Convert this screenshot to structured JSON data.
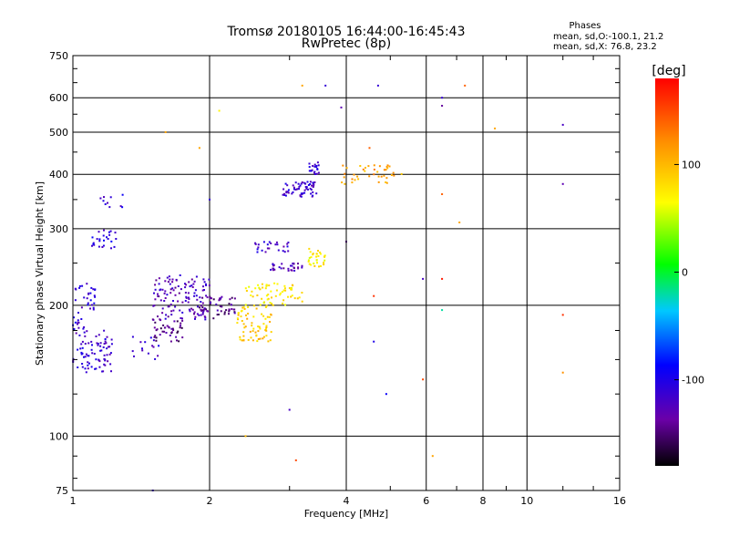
{
  "chart_data": {
    "type": "scatter",
    "title": "Tromsø 20180105 16:44:00-16:45:43",
    "subtitle": "RwPretec (8p)",
    "xlabel": "Frequency [MHz]",
    "ylabel": "Stationary phase Virtual Height [km]",
    "x_scale": "log",
    "y_scale": "log",
    "xlim": [
      1,
      16
    ],
    "ylim": [
      75,
      750
    ],
    "x_ticks": [
      1,
      2,
      4,
      6,
      8,
      10,
      16
    ],
    "x_tick_labels": [
      "1",
      "2",
      "4",
      "6",
      "8",
      "10",
      "16"
    ],
    "y_ticks": [
      75,
      100,
      200,
      300,
      400,
      500,
      600,
      750
    ],
    "y_tick_labels": [
      "75",
      "100",
      "200",
      "300",
      "400",
      "500",
      "600",
      "750"
    ],
    "x_grid": [
      2,
      4,
      6,
      8,
      10
    ],
    "y_grid": [
      100,
      200,
      300,
      400,
      500,
      600
    ],
    "stats_title": "Phases",
    "stats_lines": [
      "mean, sd,O:-100.1, 21.2",
      "mean, sd,X: 76.8, 23.2"
    ],
    "colorbar": {
      "label": "[deg]",
      "range": [
        -180,
        180
      ],
      "ticks": [
        100,
        0,
        -100
      ],
      "tick_labels": [
        "100",
        "0",
        "-100"
      ]
    },
    "clusters": [
      {
        "x": [
          1.0,
          1.22
        ],
        "y": [
          140,
          175
        ],
        "phase": -115,
        "n": 80
      },
      {
        "x": [
          1.0,
          1.12
        ],
        "y": [
          175,
          230
        ],
        "phase": -110,
        "n": 40
      },
      {
        "x": [
          1.1,
          1.25
        ],
        "y": [
          270,
          300
        ],
        "phase": -105,
        "n": 25
      },
      {
        "x": [
          1.15,
          1.3
        ],
        "y": [
          330,
          360
        ],
        "phase": -110,
        "n": 10
      },
      {
        "x": [
          1.35,
          1.55
        ],
        "y": [
          150,
          170
        ],
        "phase": -110,
        "n": 15
      },
      {
        "x": [
          1.5,
          2.0
        ],
        "y": [
          185,
          235
        ],
        "phase": -125,
        "n": 120
      },
      {
        "x": [
          1.5,
          1.75
        ],
        "y": [
          165,
          185
        ],
        "phase": -145,
        "n": 40
      },
      {
        "x": [
          1.9,
          2.3
        ],
        "y": [
          185,
          210
        ],
        "phase": -140,
        "n": 50
      },
      {
        "x": [
          2.3,
          2.75
        ],
        "y": [
          165,
          200
        ],
        "phase": 90,
        "n": 70
      },
      {
        "x": [
          2.4,
          3.2
        ],
        "y": [
          200,
          225
        ],
        "phase": 75,
        "n": 60
      },
      {
        "x": [
          2.7,
          3.2
        ],
        "y": [
          240,
          250
        ],
        "phase": -125,
        "n": 30
      },
      {
        "x": [
          2.5,
          3.0
        ],
        "y": [
          265,
          280
        ],
        "phase": -115,
        "n": 25
      },
      {
        "x": [
          3.3,
          3.6
        ],
        "y": [
          245,
          270
        ],
        "phase": 75,
        "n": 30
      },
      {
        "x": [
          2.9,
          3.45
        ],
        "y": [
          355,
          385
        ],
        "phase": -115,
        "n": 60
      },
      {
        "x": [
          3.3,
          3.5
        ],
        "y": [
          400,
          430
        ],
        "phase": -110,
        "n": 20
      },
      {
        "x": [
          3.9,
          5.3
        ],
        "y": [
          380,
          420
        ],
        "phase": 110,
        "n": 40
      }
    ],
    "scatter_points": [
      {
        "x": 1.5,
        "y": 75,
        "phase": -110
      },
      {
        "x": 3.2,
        "y": 640,
        "phase": 110
      },
      {
        "x": 3.6,
        "y": 640,
        "phase": -110
      },
      {
        "x": 4.7,
        "y": 640,
        "phase": -110
      },
      {
        "x": 6.5,
        "y": 600,
        "phase": -110
      },
      {
        "x": 7.3,
        "y": 640,
        "phase": 140
      },
      {
        "x": 6.5,
        "y": 575,
        "phase": -140
      },
      {
        "x": 12.0,
        "y": 520,
        "phase": -120
      },
      {
        "x": 12.0,
        "y": 380,
        "phase": -130
      },
      {
        "x": 12.0,
        "y": 190,
        "phase": 160
      },
      {
        "x": 12.0,
        "y": 140,
        "phase": 120
      },
      {
        "x": 6.5,
        "y": 360,
        "phase": 140
      },
      {
        "x": 6.5,
        "y": 230,
        "phase": 170
      },
      {
        "x": 6.5,
        "y": 195,
        "phase": -20
      },
      {
        "x": 5.9,
        "y": 230,
        "phase": -120
      },
      {
        "x": 5.9,
        "y": 135,
        "phase": 150
      },
      {
        "x": 6.2,
        "y": 90,
        "phase": 110
      },
      {
        "x": 4.0,
        "y": 280,
        "phase": -160
      },
      {
        "x": 3.9,
        "y": 570,
        "phase": -130
      },
      {
        "x": 3.0,
        "y": 115,
        "phase": -120
      },
      {
        "x": 2.4,
        "y": 100,
        "phase": 100
      },
      {
        "x": 3.1,
        "y": 88,
        "phase": 150
      },
      {
        "x": 2.1,
        "y": 560,
        "phase": 70
      },
      {
        "x": 4.5,
        "y": 460,
        "phase": 140
      },
      {
        "x": 4.9,
        "y": 125,
        "phase": -90
      },
      {
        "x": 7.1,
        "y": 310,
        "phase": 110
      },
      {
        "x": 8.5,
        "y": 510,
        "phase": 110
      },
      {
        "x": 1.9,
        "y": 460,
        "phase": 110
      },
      {
        "x": 1.6,
        "y": 500,
        "phase": 110
      },
      {
        "x": 2.0,
        "y": 350,
        "phase": -110
      },
      {
        "x": 4.6,
        "y": 210,
        "phase": 160
      },
      {
        "x": 4.6,
        "y": 165,
        "phase": -100
      }
    ]
  }
}
